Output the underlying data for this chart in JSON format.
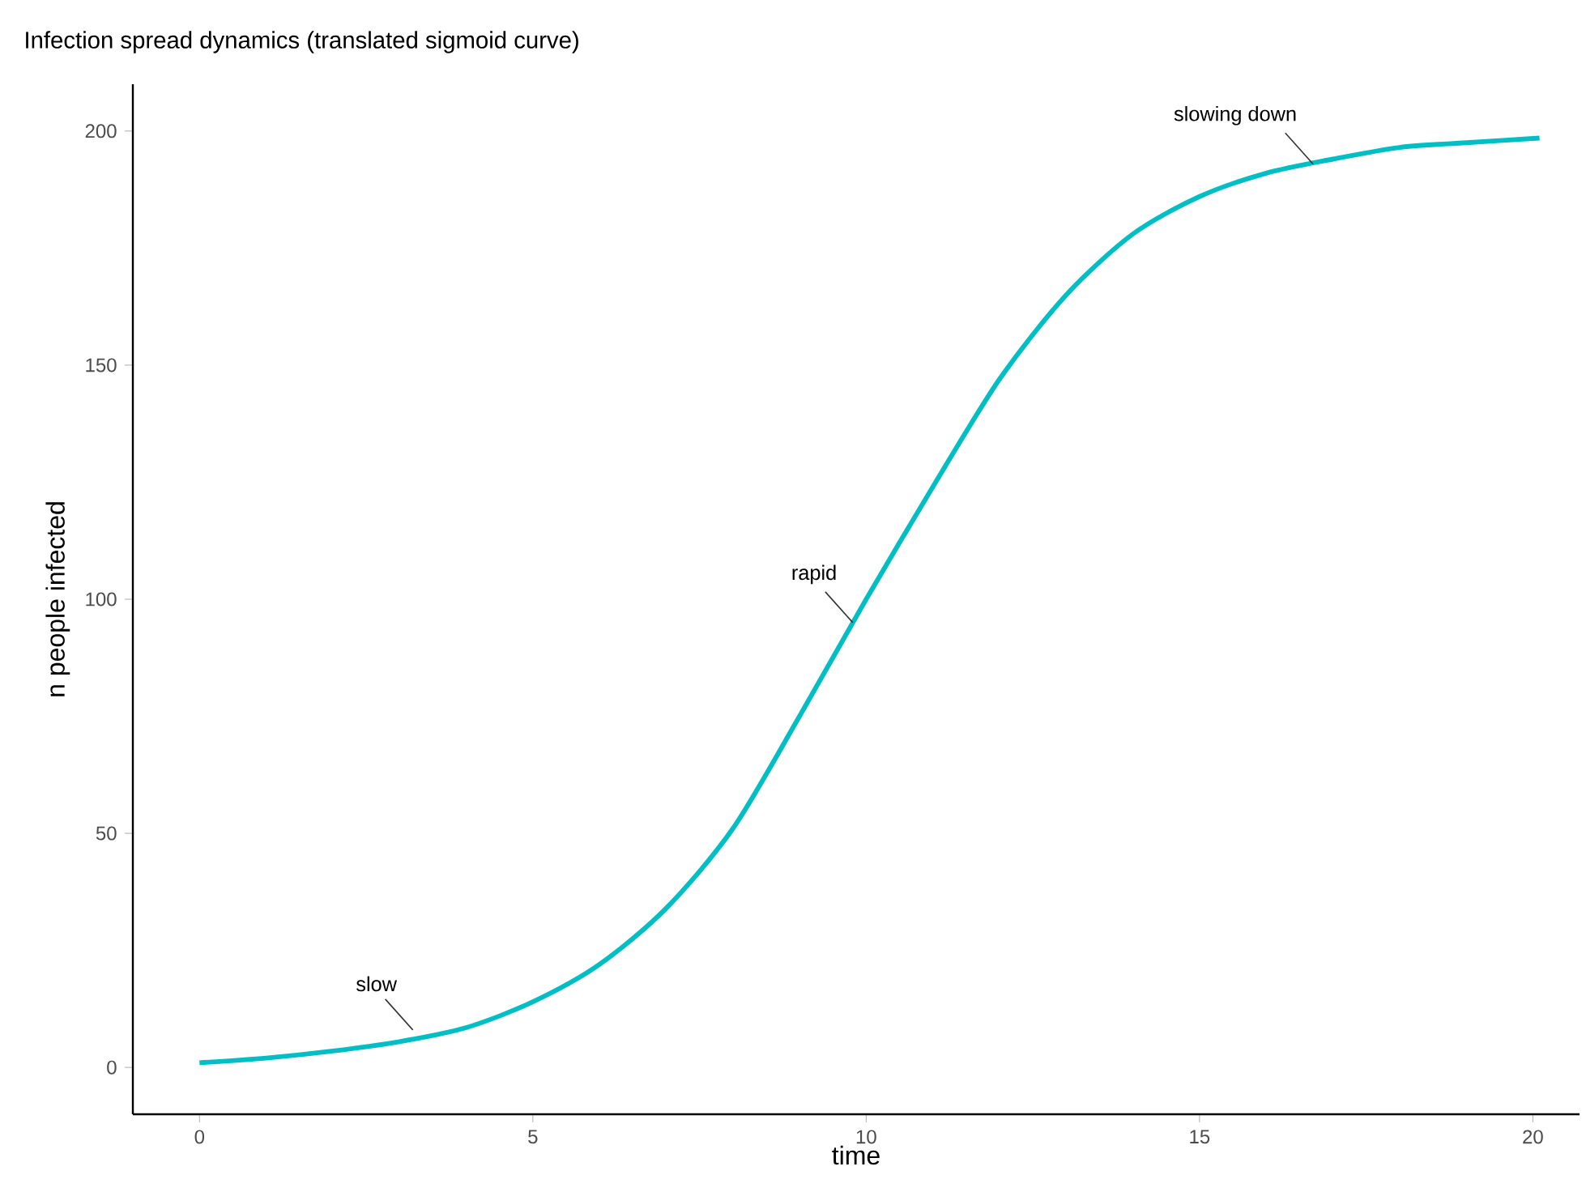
{
  "chart_data": {
    "type": "line",
    "title": "Infection spread dynamics (translated sigmoid curve)",
    "xlabel": "time",
    "ylabel": "n people infected",
    "x": [
      0,
      1,
      2,
      3,
      4,
      5,
      6,
      7,
      8,
      9,
      10,
      11,
      12,
      13,
      14,
      15,
      16,
      17,
      18,
      19,
      20.1
    ],
    "series": [
      {
        "color": "#00bfc4",
        "values": [
          1,
          2,
          3.5,
          5.5,
          8.5,
          14,
          22,
          34,
          51,
          75,
          100,
          124,
          147,
          165,
          178,
          186,
          191,
          194,
          196.5,
          197.5,
          198.5
        ]
      }
    ],
    "xlim": [
      -1,
      20.7
    ],
    "ylim": [
      -10,
      210
    ],
    "xticks": [
      0,
      5,
      10,
      15,
      20
    ],
    "yticks": [
      0,
      50,
      100,
      150,
      200
    ],
    "grid": false,
    "marker": "none",
    "line_style": "solid",
    "annotations": [
      {
        "text": "slow",
        "x": 3.2,
        "y": 8
      },
      {
        "text": "rapid",
        "x": 9.8,
        "y": 95
      },
      {
        "text": "slowing down",
        "x": 16.7,
        "y": 193
      }
    ]
  }
}
